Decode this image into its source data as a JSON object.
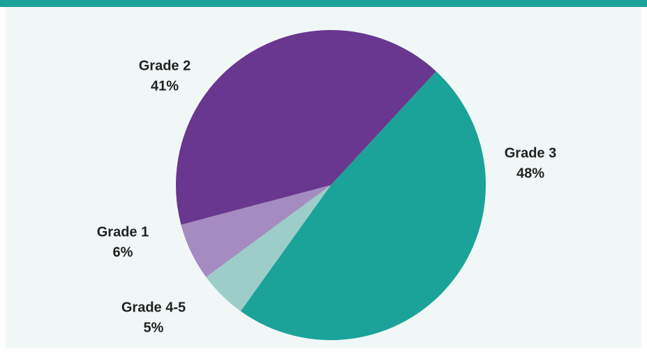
{
  "chart_data": {
    "type": "pie",
    "categories": [
      "Grade 3",
      "Grade 4-5",
      "Grade 1",
      "Grade 2"
    ],
    "values": [
      48,
      5,
      6,
      41
    ],
    "value_labels": [
      "48%",
      "5%",
      "6%",
      "41%"
    ],
    "colors": [
      "#1ba39a",
      "#9ccdc8",
      "#a58cc0",
      "#69378f"
    ]
  }
}
